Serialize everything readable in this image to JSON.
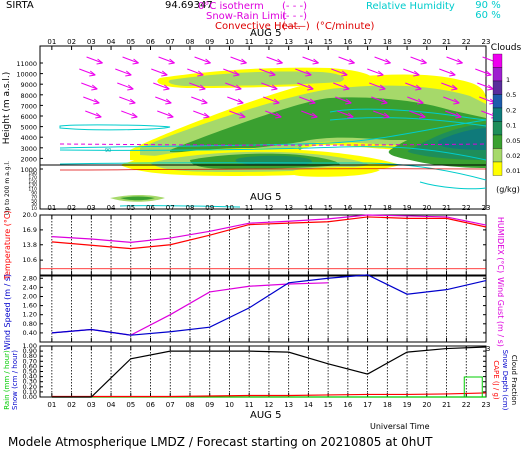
{
  "header": {
    "station": "SIRTA",
    "coords": "94.69347",
    "legend": [
      {
        "label": "0°C isotherm",
        "sample": "(- - -)",
        "color": "#dd00dd"
      },
      {
        "label": "Snow-Rain Limit",
        "sample": "(- - -)",
        "color": "#dd00dd"
      },
      {
        "label": "Convective Heat.",
        "sample": "(——)",
        "unit": "(°C/minute)",
        "color": "#dd0000"
      }
    ],
    "rh": {
      "label": "Relative Humidity",
      "v1": "90 %",
      "v2": "60 %",
      "color": "#00cccc"
    }
  },
  "footer": {
    "title": "Modele Atmospherique LMDZ / Forecast starting on 20210805 at 0hUT",
    "universal_time": "Universal Time"
  },
  "colors": {
    "cloud_levels": [
      "#ffff00",
      "#a6d96a",
      "#3aa030",
      "#1e8e5a",
      "#0f7a7a",
      "#1e5cab",
      "#5a2d9c",
      "#9e1ecf",
      "#ee00ee"
    ],
    "temperature": "#ff0000",
    "humidex": "#dd00dd",
    "wind_speed": "#0000cc",
    "wind_gust": "#dd00dd",
    "rain": "#00cc00",
    "snow": "#0000cc",
    "cloud_fraction": "#000000",
    "cape": "#ff0000"
  },
  "chart_data": [
    {
      "type": "heatmap",
      "name": "clouds",
      "date_label": "AUG 5",
      "hours": [
        "01",
        "02",
        "03",
        "04",
        "05",
        "06",
        "07",
        "08",
        "09",
        "10",
        "11",
        "12",
        "13",
        "14",
        "15",
        "16",
        "17",
        "18",
        "19",
        "20",
        "21",
        "22",
        "23"
      ],
      "yticks_upper": [
        "11000",
        "10000",
        "9000",
        "8000",
        "7000",
        "6000",
        "5000",
        "4000",
        "3000",
        "2000",
        "1000"
      ],
      "yticks_lower": [
        "190",
        "180",
        "170",
        "160",
        "150",
        "140",
        "130",
        "120",
        "110",
        "100",
        "90",
        "80",
        "70",
        "60",
        "50",
        "40",
        "30",
        "20",
        "10"
      ],
      "ylabel_upper": "Height (m a.s.l.)",
      "ylabel_lower": "Up to 200 m a.g.l.",
      "colorbar_title": "Clouds",
      "colorbar_ticks": [
        "1",
        "0.5",
        "0.2",
        "0.1",
        "0.05",
        "0.02",
        "0.01"
      ],
      "colorbar_unit": "(g/kg)",
      "annotations": [
        "90",
        "0"
      ]
    },
    {
      "type": "line",
      "name": "temperature",
      "date_label": "AUG 5",
      "x": [
        1,
        3,
        5,
        7,
        9,
        11,
        13,
        15,
        17,
        19,
        21,
        23
      ],
      "series": [
        {
          "name": "Temperature",
          "values": [
            14.4,
            13.7,
            13.0,
            13.8,
            15.8,
            18.0,
            18.3,
            18.6,
            19.6,
            19.3,
            19.3,
            17.5
          ]
        },
        {
          "name": "HUMIDEX",
          "values": [
            15.5,
            15.0,
            14.3,
            15.2,
            16.6,
            18.3,
            18.7,
            19.2,
            20.0,
            19.8,
            19.6,
            17.9
          ]
        }
      ],
      "ylim": [
        7.5,
        20.0
      ],
      "yticks": [
        "20.0",
        "16.9",
        "13.8",
        "10.6"
      ],
      "ylabel_left": "Temperature (°C)",
      "ylabel_right": "HUMIDEX (°C)"
    },
    {
      "type": "line",
      "name": "wind",
      "date_label": "AUG 5",
      "x": [
        1,
        3,
        5,
        7,
        9,
        11,
        13,
        15,
        17,
        19,
        21,
        23
      ],
      "series": [
        {
          "name": "Wind Speed",
          "values": [
            0.4,
            0.55,
            0.3,
            0.45,
            0.65,
            1.5,
            2.6,
            2.8,
            2.95,
            2.1,
            2.3,
            2.7
          ]
        },
        {
          "name": "Wind Gust",
          "values": [
            0.4,
            0.55,
            0.3,
            1.2,
            2.2,
            2.45,
            2.55,
            2.6,
            null,
            null,
            null,
            null
          ]
        }
      ],
      "ylim": [
        0.0,
        2.9
      ],
      "yticks": [
        "2.80",
        "2.40",
        "2.00",
        "1.60",
        "1.20",
        "0.80",
        "0.40"
      ],
      "ylabel_left": "Wind Speed (m / s)",
      "ylabel_right": "Wind Gust (m / s)"
    },
    {
      "type": "line",
      "name": "precipitation",
      "date_label": "AUG 5",
      "x": [
        1,
        3,
        5,
        7,
        9,
        11,
        13,
        15,
        17,
        19,
        21,
        23
      ],
      "series": [
        {
          "name": "Cloud Fraction",
          "values": [
            0.0,
            0.0,
            0.75,
            0.9,
            0.9,
            0.9,
            0.88,
            0.65,
            0.45,
            0.88,
            0.95,
            0.98
          ]
        },
        {
          "name": "CAPE",
          "values": [
            0.01,
            0.01,
            0.01,
            0.01,
            0.02,
            0.03,
            0.03,
            0.04,
            0.05,
            0.05,
            0.06,
            0.08
          ]
        },
        {
          "name": "Rain",
          "values": [
            0,
            0,
            0,
            0,
            0,
            0,
            0,
            0,
            0,
            0,
            0,
            0
          ]
        }
      ],
      "ylim": [
        0.0,
        1.0
      ],
      "yticks": [
        "1.00",
        "0.90",
        "0.80",
        "0.70",
        "0.60",
        "0.50",
        "0.40",
        "0.30",
        "0.20",
        "0.10",
        "0.00"
      ],
      "ylabel_left_1": "Rain (mm / hour)",
      "ylabel_left_2": "Snow (cm / hour)",
      "ylabel_right_1": "CAPE (J / g)",
      "ylabel_right_2": "Snow Depth (cm)",
      "ylabel_right_3": "Cloud Fraction"
    }
  ]
}
